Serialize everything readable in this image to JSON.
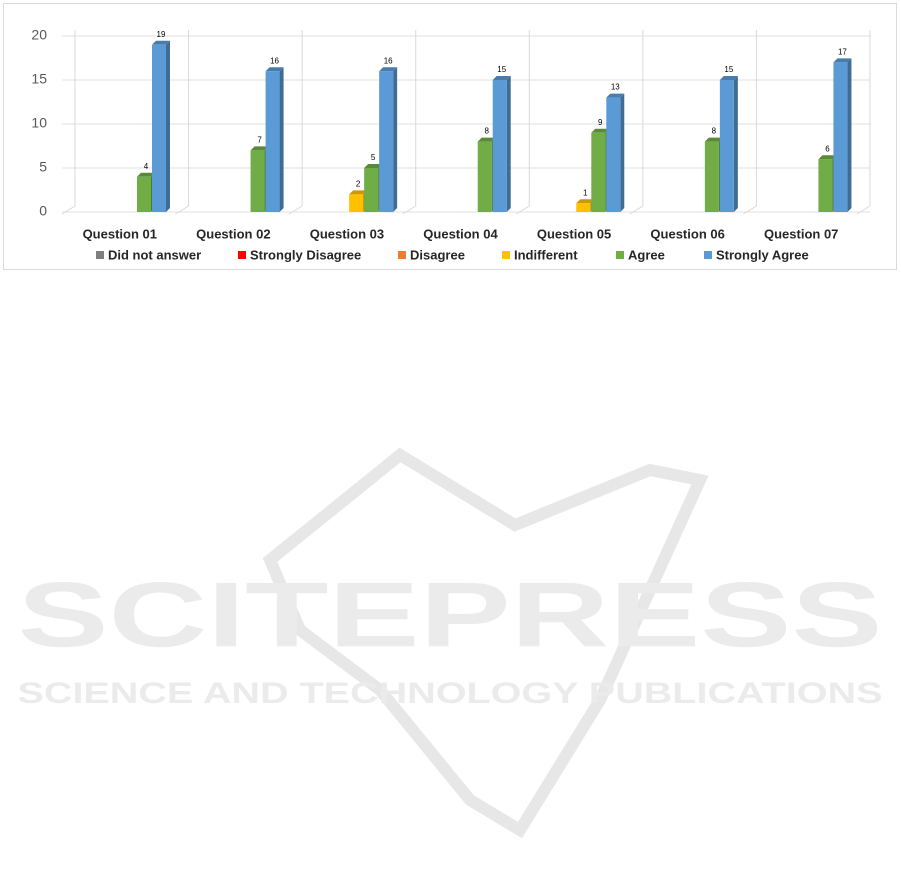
{
  "chart_data": {
    "type": "bar",
    "categories": [
      "Question 01",
      "Question 02",
      "Question 03",
      "Question 04",
      "Question 05",
      "Question 06",
      "Question 07"
    ],
    "series": [
      {
        "name": "Did not answer",
        "color": "#7f7f7f",
        "values": [
          0,
          0,
          0,
          0,
          0,
          0,
          0
        ]
      },
      {
        "name": "Strongly Disagree",
        "color": "#ff0000",
        "values": [
          0,
          0,
          0,
          0,
          0,
          0,
          0
        ]
      },
      {
        "name": "Disagree",
        "color": "#ed7d31",
        "values": [
          0,
          0,
          0,
          0,
          0,
          0,
          0
        ]
      },
      {
        "name": "Indifferent",
        "color": "#ffc000",
        "values": [
          0,
          0,
          2,
          0,
          1,
          0,
          0
        ]
      },
      {
        "name": "Agree",
        "color": "#70ad47",
        "values": [
          4,
          7,
          5,
          8,
          9,
          8,
          6
        ]
      },
      {
        "name": "Strongly Agree",
        "color": "#5b9bd5",
        "values": [
          19,
          16,
          16,
          15,
          13,
          15,
          17
        ]
      }
    ],
    "ylim": [
      0,
      20
    ],
    "yticks": [
      0,
      5,
      10,
      15,
      20
    ],
    "grid": true,
    "legend": "bottom"
  },
  "watermark": {
    "title": "SCITEPRESS",
    "subtitle": "SCIENCE AND TECHNOLOGY PUBLICATIONS"
  }
}
